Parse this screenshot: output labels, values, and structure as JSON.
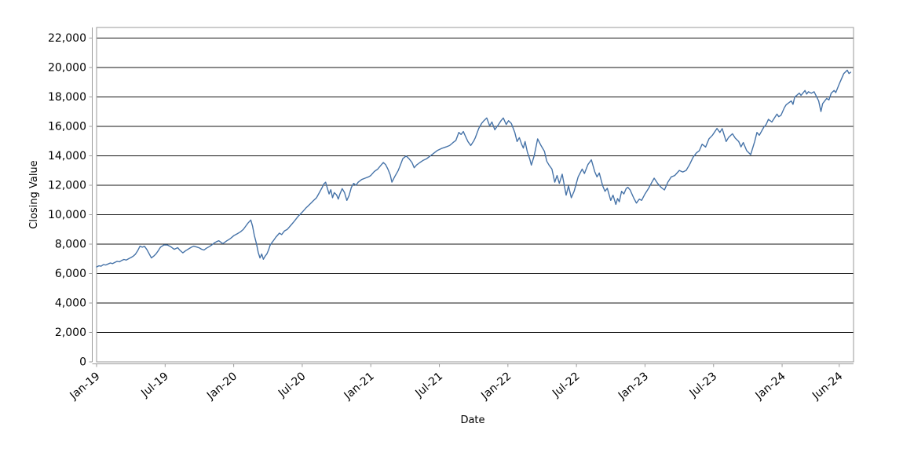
{
  "window": {
    "background": "#ffffff"
  },
  "colors": {
    "series_line": "#4673a8",
    "gridline": "#151515",
    "axis_line": "#9a9a9a",
    "plot_border": "#9a9a9a",
    "text": "#000000",
    "background": "#ffffff"
  },
  "chart_data": {
    "type": "line",
    "title": "",
    "xlabel": "Date",
    "ylabel": "Closing Value",
    "legend": "none",
    "grid": "horizontal-only",
    "x_axis": {
      "unit": "months since Jan-2019",
      "range_months": [
        0,
        66.25
      ],
      "ticks": [
        {
          "pos": 0,
          "label": "Jan-19"
        },
        {
          "pos": 6,
          "label": "Jul-19"
        },
        {
          "pos": 12,
          "label": "Jan-20"
        },
        {
          "pos": 18,
          "label": "Jul-20"
        },
        {
          "pos": 24,
          "label": "Jan-21"
        },
        {
          "pos": 30,
          "label": "Jul-21"
        },
        {
          "pos": 36,
          "label": "Jan-22"
        },
        {
          "pos": 42,
          "label": "Jul-22"
        },
        {
          "pos": 48,
          "label": "Jan-23"
        },
        {
          "pos": 54,
          "label": "Jul-23"
        },
        {
          "pos": 60,
          "label": "Jan-24"
        },
        {
          "pos": 65,
          "label": "Jun-24"
        }
      ]
    },
    "y_axis": {
      "range": [
        0,
        22720
      ],
      "ticks": [
        {
          "value": 0,
          "label": "0"
        },
        {
          "value": 2000,
          "label": "2,000"
        },
        {
          "value": 4000,
          "label": "4,000"
        },
        {
          "value": 6000,
          "label": "6,000"
        },
        {
          "value": 8000,
          "label": "8,000"
        },
        {
          "value": 10000,
          "label": "10,000"
        },
        {
          "value": 12000,
          "label": "12,000"
        },
        {
          "value": 14000,
          "label": "14,000"
        },
        {
          "value": 16000,
          "label": "16,000"
        },
        {
          "value": 18000,
          "label": "18,000"
        },
        {
          "value": 20000,
          "label": "20,000"
        },
        {
          "value": 22000,
          "label": "22,000"
        }
      ]
    },
    "series": [
      {
        "name": "Closing Value",
        "color": "#4673a8",
        "points": [
          [
            0,
            6450
          ],
          [
            0.2,
            6530
          ],
          [
            0.4,
            6500
          ],
          [
            0.6,
            6610
          ],
          [
            0.8,
            6580
          ],
          [
            1,
            6650
          ],
          [
            1.2,
            6720
          ],
          [
            1.4,
            6680
          ],
          [
            1.6,
            6760
          ],
          [
            1.8,
            6830
          ],
          [
            2,
            6800
          ],
          [
            2.2,
            6890
          ],
          [
            2.4,
            6960
          ],
          [
            2.6,
            6920
          ],
          [
            2.8,
            7010
          ],
          [
            3,
            7090
          ],
          [
            3.2,
            7180
          ],
          [
            3.4,
            7320
          ],
          [
            3.6,
            7560
          ],
          [
            3.8,
            7860
          ],
          [
            4,
            7790
          ],
          [
            4.2,
            7850
          ],
          [
            4.4,
            7640
          ],
          [
            4.6,
            7350
          ],
          [
            4.8,
            7060
          ],
          [
            5,
            7190
          ],
          [
            5.2,
            7340
          ],
          [
            5.4,
            7560
          ],
          [
            5.6,
            7800
          ],
          [
            5.9,
            7950
          ],
          [
            6.2,
            7940
          ],
          [
            6.5,
            7820
          ],
          [
            6.8,
            7650
          ],
          [
            7.1,
            7760
          ],
          [
            7.3,
            7580
          ],
          [
            7.55,
            7410
          ],
          [
            7.8,
            7560
          ],
          [
            8.1,
            7700
          ],
          [
            8.3,
            7790
          ],
          [
            8.5,
            7860
          ],
          [
            8.8,
            7800
          ],
          [
            9,
            7740
          ],
          [
            9.2,
            7650
          ],
          [
            9.4,
            7600
          ],
          [
            9.6,
            7720
          ],
          [
            9.9,
            7850
          ],
          [
            10.1,
            7960
          ],
          [
            10.3,
            8080
          ],
          [
            10.5,
            8170
          ],
          [
            10.7,
            8230
          ],
          [
            10.9,
            8120
          ],
          [
            11.05,
            8040
          ],
          [
            11.2,
            8120
          ],
          [
            11.4,
            8230
          ],
          [
            11.6,
            8320
          ],
          [
            11.8,
            8440
          ],
          [
            12,
            8570
          ],
          [
            12.3,
            8700
          ],
          [
            12.6,
            8840
          ],
          [
            12.85,
            9010
          ],
          [
            13.05,
            9220
          ],
          [
            13.25,
            9430
          ],
          [
            13.5,
            9640
          ],
          [
            13.65,
            9230
          ],
          [
            13.8,
            8620
          ],
          [
            14,
            8010
          ],
          [
            14.15,
            7430
          ],
          [
            14.3,
            7060
          ],
          [
            14.45,
            7330
          ],
          [
            14.6,
            6970
          ],
          [
            14.75,
            7180
          ],
          [
            14.9,
            7330
          ],
          [
            15.05,
            7600
          ],
          [
            15.2,
            7950
          ],
          [
            15.45,
            8210
          ],
          [
            15.7,
            8480
          ],
          [
            16,
            8745
          ],
          [
            16.2,
            8650
          ],
          [
            16.45,
            8900
          ],
          [
            16.7,
            9010
          ],
          [
            17,
            9280
          ],
          [
            17.3,
            9550
          ],
          [
            17.65,
            9900
          ],
          [
            18,
            10170
          ],
          [
            18.3,
            10440
          ],
          [
            18.65,
            10700
          ],
          [
            19,
            10970
          ],
          [
            19.25,
            11150
          ],
          [
            19.5,
            11500
          ],
          [
            19.75,
            11860
          ],
          [
            19.9,
            12100
          ],
          [
            20.05,
            12210
          ],
          [
            20.2,
            11800
          ],
          [
            20.35,
            11410
          ],
          [
            20.5,
            11700
          ],
          [
            20.65,
            11150
          ],
          [
            20.8,
            11500
          ],
          [
            21,
            11350
          ],
          [
            21.15,
            11060
          ],
          [
            21.3,
            11400
          ],
          [
            21.5,
            11770
          ],
          [
            21.7,
            11500
          ],
          [
            21.9,
            10970
          ],
          [
            22.1,
            11300
          ],
          [
            22.3,
            11860
          ],
          [
            22.5,
            12130
          ],
          [
            22.7,
            12000
          ],
          [
            22.9,
            12210
          ],
          [
            23.2,
            12390
          ],
          [
            23.5,
            12480
          ],
          [
            23.8,
            12570
          ],
          [
            24,
            12660
          ],
          [
            24.3,
            12930
          ],
          [
            24.6,
            13100
          ],
          [
            24.9,
            13370
          ],
          [
            25.1,
            13545
          ],
          [
            25.3,
            13400
          ],
          [
            25.5,
            13100
          ],
          [
            25.7,
            12700
          ],
          [
            25.85,
            12210
          ],
          [
            26.1,
            12600
          ],
          [
            26.4,
            13000
          ],
          [
            26.6,
            13400
          ],
          [
            26.8,
            13810
          ],
          [
            27.1,
            13990
          ],
          [
            27.35,
            13800
          ],
          [
            27.6,
            13550
          ],
          [
            27.8,
            13190
          ],
          [
            28,
            13370
          ],
          [
            28.3,
            13545
          ],
          [
            28.6,
            13700
          ],
          [
            28.9,
            13810
          ],
          [
            29.2,
            13990
          ],
          [
            29.5,
            14170
          ],
          [
            29.8,
            14350
          ],
          [
            30.2,
            14500
          ],
          [
            30.6,
            14610
          ],
          [
            30.9,
            14700
          ],
          [
            31.2,
            14900
          ],
          [
            31.45,
            15050
          ],
          [
            31.7,
            15590
          ],
          [
            31.9,
            15450
          ],
          [
            32.1,
            15650
          ],
          [
            32.3,
            15300
          ],
          [
            32.5,
            14970
          ],
          [
            32.75,
            14700
          ],
          [
            33,
            15000
          ],
          [
            33.15,
            15240
          ],
          [
            33.45,
            15860
          ],
          [
            33.7,
            16210
          ],
          [
            33.9,
            16390
          ],
          [
            34.15,
            16570
          ],
          [
            34.4,
            16040
          ],
          [
            34.6,
            16300
          ],
          [
            34.85,
            15770
          ],
          [
            35.15,
            16100
          ],
          [
            35.4,
            16390
          ],
          [
            35.6,
            16570
          ],
          [
            35.85,
            16130
          ],
          [
            36.05,
            16390
          ],
          [
            36.3,
            16200
          ],
          [
            36.6,
            15590
          ],
          [
            36.8,
            14970
          ],
          [
            37,
            15240
          ],
          [
            37.2,
            14790
          ],
          [
            37.35,
            14530
          ],
          [
            37.5,
            14970
          ],
          [
            37.7,
            14260
          ],
          [
            37.9,
            13810
          ],
          [
            38.05,
            13370
          ],
          [
            38.3,
            14000
          ],
          [
            38.6,
            15150
          ],
          [
            38.9,
            14700
          ],
          [
            39.2,
            14300
          ],
          [
            39.4,
            13640
          ],
          [
            39.6,
            13370
          ],
          [
            39.85,
            13100
          ],
          [
            40.1,
            12210
          ],
          [
            40.3,
            12660
          ],
          [
            40.5,
            12130
          ],
          [
            40.75,
            12750
          ],
          [
            41.1,
            11330
          ],
          [
            41.3,
            11950
          ],
          [
            41.55,
            11150
          ],
          [
            41.8,
            11600
          ],
          [
            42.15,
            12570
          ],
          [
            42.5,
            13100
          ],
          [
            42.7,
            12800
          ],
          [
            43,
            13400
          ],
          [
            43.3,
            13730
          ],
          [
            43.6,
            12930
          ],
          [
            43.8,
            12570
          ],
          [
            44,
            12830
          ],
          [
            44.3,
            11950
          ],
          [
            44.5,
            11590
          ],
          [
            44.7,
            11800
          ],
          [
            45,
            10970
          ],
          [
            45.2,
            11330
          ],
          [
            45.45,
            10700
          ],
          [
            45.6,
            11100
          ],
          [
            45.75,
            10880
          ],
          [
            45.95,
            11590
          ],
          [
            46.15,
            11410
          ],
          [
            46.35,
            11770
          ],
          [
            46.5,
            11860
          ],
          [
            46.7,
            11680
          ],
          [
            47,
            11150
          ],
          [
            47.25,
            10790
          ],
          [
            47.5,
            11060
          ],
          [
            47.7,
            10970
          ],
          [
            48,
            11410
          ],
          [
            48.3,
            11770
          ],
          [
            48.6,
            12210
          ],
          [
            48.8,
            12480
          ],
          [
            49.1,
            12130
          ],
          [
            49.4,
            11860
          ],
          [
            49.7,
            11680
          ],
          [
            50,
            12210
          ],
          [
            50.3,
            12570
          ],
          [
            50.6,
            12660
          ],
          [
            51,
            13010
          ],
          [
            51.3,
            12900
          ],
          [
            51.6,
            13010
          ],
          [
            51.9,
            13400
          ],
          [
            52.2,
            13900
          ],
          [
            52.5,
            14200
          ],
          [
            52.75,
            14350
          ],
          [
            53,
            14790
          ],
          [
            53.3,
            14600
          ],
          [
            53.6,
            15150
          ],
          [
            53.9,
            15400
          ],
          [
            54.3,
            15860
          ],
          [
            54.55,
            15590
          ],
          [
            54.75,
            15850
          ],
          [
            55.1,
            14970
          ],
          [
            55.3,
            15240
          ],
          [
            55.65,
            15500
          ],
          [
            55.9,
            15200
          ],
          [
            56.2,
            14970
          ],
          [
            56.4,
            14610
          ],
          [
            56.6,
            14900
          ],
          [
            56.9,
            14350
          ],
          [
            57.25,
            14080
          ],
          [
            57.6,
            14970
          ],
          [
            57.8,
            15590
          ],
          [
            58,
            15400
          ],
          [
            58.4,
            15950
          ],
          [
            58.6,
            16130
          ],
          [
            58.8,
            16480
          ],
          [
            59.1,
            16300
          ],
          [
            59.55,
            16840
          ],
          [
            59.7,
            16660
          ],
          [
            59.9,
            16750
          ],
          [
            60.2,
            17280
          ],
          [
            60.35,
            17460
          ],
          [
            60.8,
            17730
          ],
          [
            60.95,
            17500
          ],
          [
            61.1,
            17990
          ],
          [
            61.5,
            18260
          ],
          [
            61.65,
            18100
          ],
          [
            62,
            18440
          ],
          [
            62.15,
            18200
          ],
          [
            62.3,
            18350
          ],
          [
            62.55,
            18250
          ],
          [
            62.8,
            18350
          ],
          [
            63.2,
            17730
          ],
          [
            63.4,
            17010
          ],
          [
            63.55,
            17550
          ],
          [
            63.9,
            17900
          ],
          [
            64.1,
            17800
          ],
          [
            64.3,
            18260
          ],
          [
            64.55,
            18440
          ],
          [
            64.7,
            18300
          ],
          [
            65,
            18880
          ],
          [
            65.2,
            19240
          ],
          [
            65.4,
            19590
          ],
          [
            65.7,
            19820
          ],
          [
            65.85,
            19590
          ],
          [
            66,
            19680
          ]
        ]
      }
    ]
  }
}
